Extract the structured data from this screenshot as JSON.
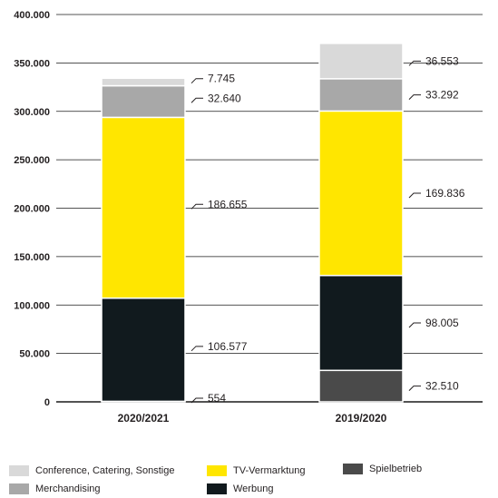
{
  "chart_data": {
    "type": "bar",
    "stacked": true,
    "categories": [
      "2020/2021",
      "2019/2020"
    ],
    "ylim": [
      0,
      400000
    ],
    "y_ticks": [
      "0",
      "50.000",
      "100.000",
      "150.000",
      "200.000",
      "250.000",
      "300.000",
      "350.000",
      "400.000"
    ],
    "grid": true,
    "legend_position": "bottom",
    "series": [
      {
        "name": "Spielbetrieb",
        "color": "#4a4a4a",
        "values": [
          554,
          32510
        ],
        "labels": [
          "554",
          "32.510"
        ]
      },
      {
        "name": "Werbung",
        "color": "#111a1e",
        "values": [
          106577,
          98005
        ],
        "labels": [
          "106.577",
          "98.005"
        ]
      },
      {
        "name": "TV-Vermarktung",
        "color": "#ffe600",
        "values": [
          186655,
          169836
        ],
        "labels": [
          "186.655",
          "169.836"
        ]
      },
      {
        "name": "Merchandising",
        "color": "#a8a8a8",
        "values": [
          32640,
          33292
        ],
        "labels": [
          "32.640",
          "33.292"
        ]
      },
      {
        "name": "Conference, Catering, Sonstige",
        "color": "#d9d9d9",
        "values": [
          7745,
          36553
        ],
        "labels": [
          "7.745",
          "36.553"
        ]
      }
    ]
  },
  "legend": {
    "items": [
      {
        "name": "Conference, Catering, Sonstige",
        "color": "#d9d9d9"
      },
      {
        "name": "Merchandising",
        "color": "#a8a8a8"
      },
      {
        "name": "TV-Vermarktung",
        "color": "#ffe600"
      },
      {
        "name": "Werbung",
        "color": "#111a1e"
      },
      {
        "name": "Spielbetrieb",
        "color": "#4a4a4a"
      }
    ]
  }
}
